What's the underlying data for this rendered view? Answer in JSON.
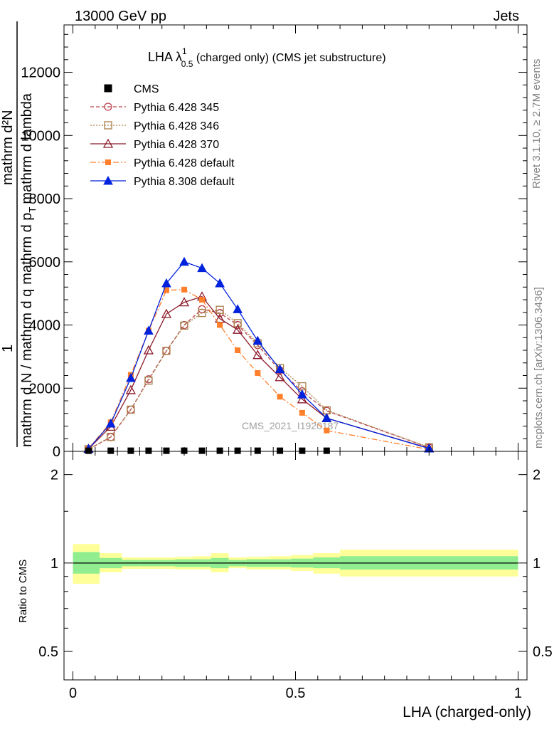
{
  "header": {
    "left": "13000 GeV pp",
    "right": "Jets"
  },
  "side_labels": {
    "rivet": "Rivet 3.1.10, ≥ 2.7M events",
    "mcplots": "mcplots.cern.ch [arXiv:1306.3436]"
  },
  "watermark": "CMS_2021_I1920187",
  "colors": {
    "cms": "#000000",
    "p345": "#b8434f",
    "p346": "#a8814a",
    "p370": "#8b1a2a",
    "pdefault": "#ff7f2a",
    "p8default": "#0022dd",
    "band_inner": "#90ee90",
    "band_outer": "#ffff99"
  },
  "chart_data": [
    {
      "type": "line",
      "title": "LHA λ",
      "title_sup": "1",
      "title_sub": "0.5",
      "title_rest": " (charged only) (CMS jet substructure)",
      "xlabel": "LHA (charged-only)",
      "ylabel_numerator": "1",
      "ylabel_numerator_sub": "mathrm d²N",
      "ylabel_denominator": "mathrm d N / mathrm d q",
      "ylabel_denominator_tail": "mathrm d p",
      "ylabel_denominator_sub": "T",
      "ylabel_denominator_end": "mathrm d lambda",
      "xlim": [
        -0.02,
        1.02
      ],
      "ylim": [
        0,
        13500
      ],
      "yticks": [
        0,
        2000,
        4000,
        6000,
        8000,
        10000,
        12000
      ],
      "ytick_labels": [
        "0",
        "2000",
        "4000",
        "6000",
        "8000",
        "10000",
        "12000"
      ],
      "legend_position": "top-left",
      "series": [
        {
          "name": "CMS",
          "key": "cms",
          "marker": "square-filled",
          "line": "none",
          "x": [
            0.035,
            0.085,
            0.13,
            0.17,
            0.21,
            0.25,
            0.29,
            0.33,
            0.37,
            0.415,
            0.465,
            0.515,
            0.57
          ],
          "values": [
            20,
            20,
            20,
            20,
            20,
            20,
            20,
            20,
            20,
            20,
            20,
            20,
            20
          ]
        },
        {
          "name": "Pythia 6.428 345",
          "key": "p345",
          "marker": "circle-open",
          "line": "dashed",
          "x": [
            0.035,
            0.085,
            0.13,
            0.17,
            0.21,
            0.25,
            0.29,
            0.33,
            0.37,
            0.415,
            0.465,
            0.515,
            0.57,
            0.8
          ],
          "values": [
            60,
            450,
            1320,
            2280,
            3180,
            4000,
            4500,
            4380,
            4000,
            3360,
            2560,
            1900,
            1280,
            120
          ]
        },
        {
          "name": "Pythia 6.428 346",
          "key": "p346",
          "marker": "square-open",
          "line": "dotted",
          "x": [
            0.035,
            0.085,
            0.13,
            0.17,
            0.21,
            0.25,
            0.29,
            0.33,
            0.37,
            0.415,
            0.465,
            0.515,
            0.57,
            0.8
          ],
          "values": [
            70,
            460,
            1320,
            2240,
            3180,
            3980,
            4380,
            4480,
            4060,
            3420,
            2640,
            2060,
            1300,
            130
          ]
        },
        {
          "name": "Pythia 6.428 370",
          "key": "p370",
          "marker": "triangle-open",
          "line": "solid",
          "x": [
            0.035,
            0.085,
            0.13,
            0.17,
            0.21,
            0.25,
            0.29,
            0.33,
            0.37,
            0.415,
            0.465,
            0.515,
            0.57,
            0.8
          ],
          "values": [
            80,
            780,
            1940,
            3200,
            4350,
            4720,
            4900,
            4200,
            3850,
            3050,
            2350,
            1650,
            1050,
            100
          ]
        },
        {
          "name": "Pythia 6.428 default",
          "key": "pdefault",
          "marker": "square-filled",
          "line": "dashdot",
          "x": [
            0.035,
            0.085,
            0.13,
            0.17,
            0.21,
            0.25,
            0.29,
            0.33,
            0.37,
            0.415,
            0.465,
            0.515,
            0.57,
            0.8
          ],
          "values": [
            90,
            920,
            2420,
            3820,
            5100,
            5120,
            4800,
            4000,
            3200,
            2480,
            1730,
            1220,
            660,
            60
          ]
        },
        {
          "name": "Pythia 8.308 default",
          "key": "p8default",
          "marker": "triangle-filled",
          "line": "solid",
          "x": [
            0.035,
            0.085,
            0.13,
            0.17,
            0.21,
            0.25,
            0.29,
            0.33,
            0.37,
            0.415,
            0.465,
            0.515,
            0.57,
            0.8
          ],
          "values": [
            80,
            880,
            2320,
            3820,
            5320,
            6000,
            5800,
            5320,
            4500,
            3500,
            2600,
            1800,
            1050,
            90
          ]
        }
      ]
    },
    {
      "type": "area",
      "ylabel": "Ratio to CMS",
      "xlabel": "LHA (charged-only)",
      "xlim": [
        -0.02,
        1.02
      ],
      "ylim": [
        0.4,
        2.4
      ],
      "log_scale_y": true,
      "yticks": [
        0.5,
        1,
        2
      ],
      "ytick_labels": [
        "0.5",
        "1",
        "2"
      ],
      "xticks": [
        0,
        0.5,
        1
      ],
      "xtick_labels": [
        "0",
        "0.5",
        "1"
      ],
      "reference_line": 1,
      "bins": [
        {
          "x0": 0.0,
          "x1": 0.06,
          "inner": [
            0.92,
            1.09
          ],
          "outer": [
            0.85,
            1.16
          ]
        },
        {
          "x0": 0.06,
          "x1": 0.11,
          "inner": [
            0.96,
            1.04
          ],
          "outer": [
            0.93,
            1.08
          ]
        },
        {
          "x0": 0.11,
          "x1": 0.15,
          "inner": [
            0.975,
            1.025
          ],
          "outer": [
            0.955,
            1.045
          ]
        },
        {
          "x0": 0.15,
          "x1": 0.19,
          "inner": [
            0.975,
            1.025
          ],
          "outer": [
            0.955,
            1.045
          ]
        },
        {
          "x0": 0.19,
          "x1": 0.23,
          "inner": [
            0.975,
            1.025
          ],
          "outer": [
            0.955,
            1.045
          ]
        },
        {
          "x0": 0.23,
          "x1": 0.27,
          "inner": [
            0.97,
            1.03
          ],
          "outer": [
            0.95,
            1.05
          ]
        },
        {
          "x0": 0.27,
          "x1": 0.31,
          "inner": [
            0.97,
            1.03
          ],
          "outer": [
            0.95,
            1.055
          ]
        },
        {
          "x0": 0.31,
          "x1": 0.35,
          "inner": [
            0.96,
            1.04
          ],
          "outer": [
            0.93,
            1.08
          ]
        },
        {
          "x0": 0.35,
          "x1": 0.39,
          "inner": [
            0.975,
            1.025
          ],
          "outer": [
            0.96,
            1.045
          ]
        },
        {
          "x0": 0.39,
          "x1": 0.44,
          "inner": [
            0.97,
            1.03
          ],
          "outer": [
            0.95,
            1.05
          ]
        },
        {
          "x0": 0.44,
          "x1": 0.49,
          "inner": [
            0.97,
            1.03
          ],
          "outer": [
            0.95,
            1.055
          ]
        },
        {
          "x0": 0.49,
          "x1": 0.54,
          "inner": [
            0.965,
            1.035
          ],
          "outer": [
            0.94,
            1.065
          ]
        },
        {
          "x0": 0.54,
          "x1": 0.6,
          "inner": [
            0.96,
            1.045
          ],
          "outer": [
            0.92,
            1.08
          ]
        },
        {
          "x0": 0.6,
          "x1": 1.0,
          "inner": [
            0.95,
            1.055
          ],
          "outer": [
            0.9,
            1.11
          ]
        }
      ]
    }
  ]
}
